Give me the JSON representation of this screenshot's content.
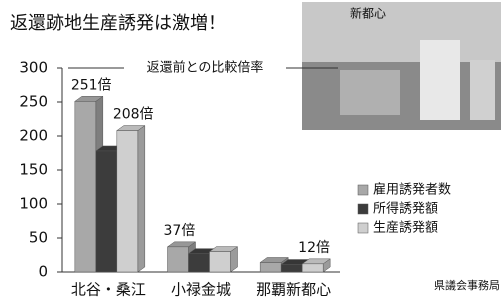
{
  "chart_data": {
    "type": "bar",
    "title": "返還跡地生産誘発は激増！",
    "subtitle": "返還前との比較倍率",
    "categories": [
      "北谷・桑江",
      "小禄金城",
      "那覇新都心"
    ],
    "series": [
      {
        "name": "雇用誘発者数",
        "color": "#a8a8a8",
        "values": [
          251,
          37,
          14
        ],
        "value_labels": [
          "251倍",
          "37倍",
          null
        ]
      },
      {
        "name": "所得誘発額",
        "color": "#3c3c3c",
        "values": [
          178,
          27,
          11
        ]
      },
      {
        "name": "生産誘発額",
        "color": "#cfcfcf",
        "values": [
          208,
          30,
          12
        ],
        "value_labels": [
          "208倍",
          null,
          "12倍"
        ]
      }
    ],
    "ylim": [
      0,
      300
    ],
    "yticks": [
      0,
      50,
      100,
      150,
      200,
      250,
      300
    ],
    "three_d": true
  },
  "photo": {
    "caption": "新都心"
  },
  "credit": "県議会事務局"
}
